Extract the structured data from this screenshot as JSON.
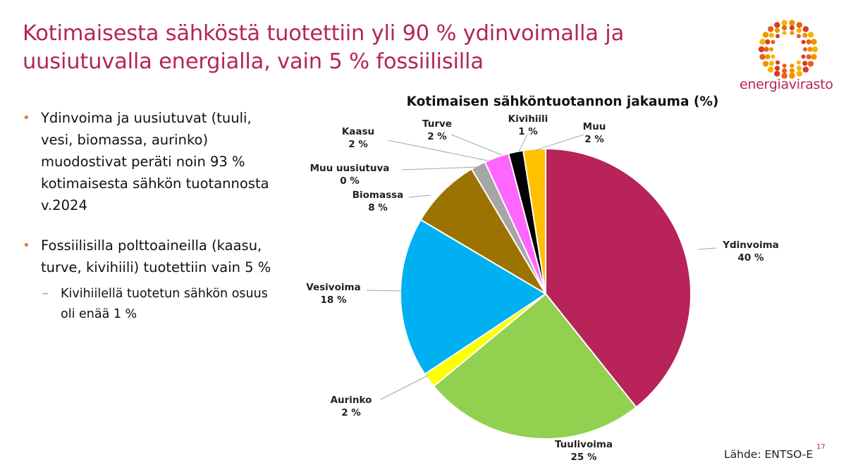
{
  "slide": {
    "title_line1": "Kotimaisesta sähköstä tuotettiin yli 90 % ydinvoimalla ja",
    "title_line2": "uusiutuvalla energialla, vain 5 % fossiilisilla",
    "logo_text": "energiavirasto",
    "bullets": [
      {
        "text": "Ydinvoima ja uusiutuvat (tuuli, vesi, biomassa, aurinko) muodostivat peräti noin 93 % kotimaisesta sähkön tuotannosta v.2024"
      },
      {
        "text": "Fossiilisilla polttoaineilla (kaasu, turve, kivihiili) tuotettiin vain 5 %"
      }
    ],
    "sub_bullet": "Kivihiilellä tuotetun sähkön osuus oli enää 1 %",
    "source": "Lähde: ENTSO-E",
    "page_number": "17",
    "accent_color": "#b5245c",
    "bullet_color": "#e07a2f"
  },
  "chart_data": {
    "type": "pie",
    "title": "Kotimaisen sähköntuotannon jakauma (%)",
    "slices": [
      {
        "name": "Ydinvoima",
        "value": 40,
        "label": "40 %",
        "color": "#b8235a"
      },
      {
        "name": "Tuulivoima",
        "value": 25,
        "label": "25 %",
        "color": "#92d050"
      },
      {
        "name": "Aurinko",
        "value": 2,
        "label": "2 %",
        "color": "#ffff00"
      },
      {
        "name": "Vesivoima",
        "value": 18,
        "label": "18 %",
        "color": "#00b0f0"
      },
      {
        "name": "Biomassa",
        "value": 8,
        "label": "8 %",
        "color": "#9c7300"
      },
      {
        "name": "Muu uusiutuva",
        "value": 0,
        "label": "0 %",
        "color": "#a6a6a6"
      },
      {
        "name": "Kaasu",
        "value": 2,
        "label": "2 %",
        "color": "#ff66ff"
      },
      {
        "name": "Turve",
        "value": 2,
        "label": "2 %",
        "color": "#ff66ff"
      },
      {
        "name": "Kivihiili",
        "value": 1,
        "label": "1 %",
        "color": "#000000"
      },
      {
        "name": "Muu",
        "value": 2,
        "label": "2 %",
        "color": "#ffc000"
      }
    ]
  }
}
